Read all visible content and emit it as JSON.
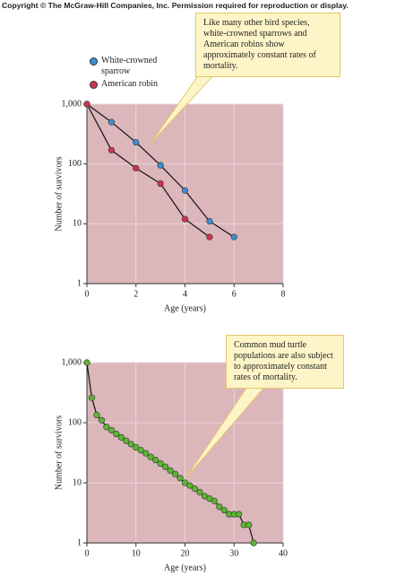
{
  "header": "Copyright © The McGraw-Hill Companies, Inc. Permission required for reproduction or display.",
  "chart_data": [
    {
      "type": "line",
      "yscale": "log",
      "grid": true,
      "legend": "upper left",
      "xlabel": "Age (years)",
      "ylabel": "Number of survivors",
      "annotation": "Like many other bird species, white-crowned sparrows and American robins show approximately constant rates of mortality.",
      "xlim": [
        0,
        8
      ],
      "xticks": [
        0,
        2,
        4,
        6,
        8
      ],
      "ylim": [
        1,
        1000
      ],
      "yticks": [
        1,
        10,
        100,
        {
          "value": 1000,
          "label": "1,000"
        }
      ],
      "series": [
        {
          "name": "White-crowned sparrow",
          "color": "#3d8fd1",
          "x": [
            0,
            1,
            2,
            3,
            4,
            5,
            6
          ],
          "values": [
            1000,
            500,
            230,
            95,
            36,
            11,
            6
          ]
        },
        {
          "name": "American robin",
          "color": "#d2324e",
          "x": [
            0,
            1,
            2,
            3,
            4,
            5
          ],
          "values": [
            1000,
            170,
            85,
            47,
            12,
            6
          ]
        }
      ]
    },
    {
      "type": "line",
      "yscale": "log",
      "grid": true,
      "xlabel": "Age (years)",
      "ylabel": "Number of survivors",
      "annotation": "Common mud turtle populations are also subject to approximately constant rates of mortality.",
      "xlim": [
        0,
        40
      ],
      "xticks": [
        0,
        10,
        20,
        30,
        40
      ],
      "ylim": [
        1,
        1000
      ],
      "yticks": [
        1,
        10,
        100,
        {
          "value": 1000,
          "label": "1,000"
        }
      ],
      "series": [
        {
          "color": "#5cb531",
          "x": [
            0,
            1,
            2,
            3,
            4,
            5,
            6,
            7,
            8,
            9,
            10,
            11,
            12,
            13,
            14,
            15,
            16,
            17,
            18,
            19,
            20,
            21,
            22,
            23,
            24,
            25,
            26,
            27,
            28,
            29,
            30,
            31,
            32,
            33,
            34
          ],
          "values": [
            1000,
            260,
            135,
            110,
            85,
            75,
            65,
            57,
            50,
            44,
            39,
            35,
            31,
            27,
            24,
            21,
            18.5,
            16,
            14,
            12,
            10,
            9,
            8,
            7,
            6,
            5.5,
            5,
            4,
            3.5,
            3,
            3,
            3,
            2,
            2,
            1
          ]
        }
      ]
    }
  ]
}
